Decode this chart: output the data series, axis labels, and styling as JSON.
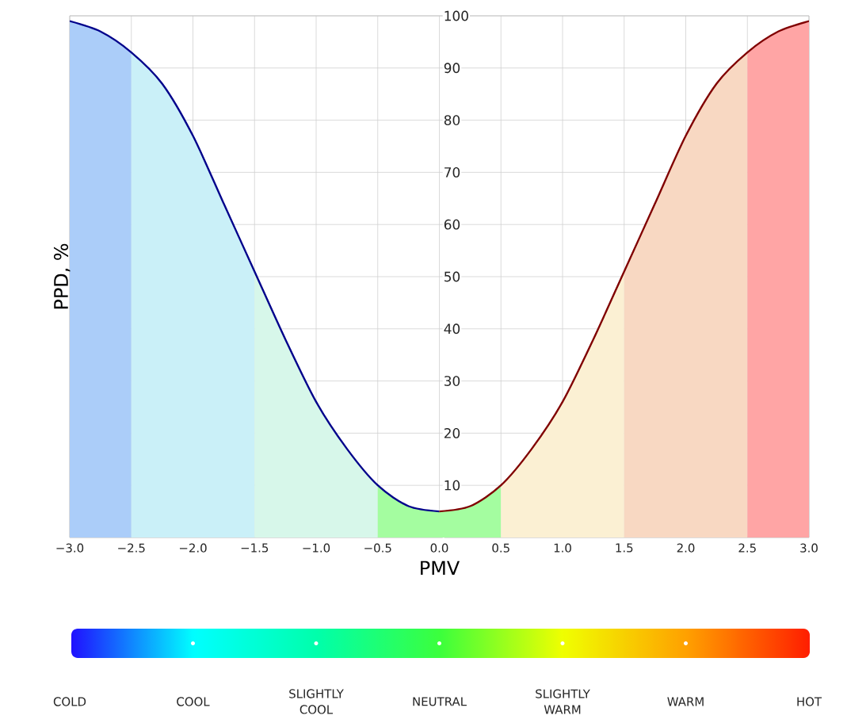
{
  "chart_data": {
    "type": "line",
    "xlabel": "PMV",
    "ylabel": "PPD, %",
    "xlim": [
      -3,
      3
    ],
    "xticks": [
      {
        "value": -3,
        "label": "−3.0"
      },
      {
        "value": -2.5,
        "label": "−2.5"
      },
      {
        "value": -2,
        "label": "−2.0"
      },
      {
        "value": -1.5,
        "label": "−1.5"
      },
      {
        "value": -1,
        "label": "−1.0"
      },
      {
        "value": -0.5,
        "label": "−0.5"
      },
      {
        "value": 0,
        "label": "0.0"
      },
      {
        "value": 0.5,
        "label": "0.5"
      },
      {
        "value": 1,
        "label": "1.0"
      },
      {
        "value": 1.5,
        "label": "1.5"
      },
      {
        "value": 2,
        "label": "2.0"
      },
      {
        "value": 2.5,
        "label": "2.5"
      },
      {
        "value": 3,
        "label": "3.0"
      }
    ],
    "ylim": [
      0,
      100
    ],
    "yticks": [
      {
        "value": 0,
        "label": null
      },
      10,
      20,
      30,
      40,
      50,
      60,
      70,
      80,
      90,
      100
    ],
    "grid": true,
    "series": [
      {
        "type": "area",
        "color": "#abcdf9",
        "x": [
          -3,
          -2.75,
          -2.5
        ],
        "values": [
          99,
          97,
          93
        ]
      },
      {
        "type": "area",
        "color": "#caf0f8",
        "x": [
          -2.5,
          -2.25,
          -2,
          -1.75,
          -1.5
        ],
        "values": [
          93,
          87,
          77,
          64,
          51
        ]
      },
      {
        "type": "area",
        "color": "#d7f7ea",
        "x": [
          -1.5,
          -1.25,
          -1,
          -0.75,
          -0.5
        ],
        "values": [
          51,
          38,
          26,
          17,
          10
        ]
      },
      {
        "type": "area",
        "color": "#a4fda0",
        "x": [
          -0.5,
          -0.25,
          0,
          0.25,
          0.5
        ],
        "values": [
          10,
          6,
          5,
          6,
          10
        ]
      },
      {
        "type": "area",
        "color": "#fbf0d3",
        "x": [
          0.5,
          0.75,
          1,
          1.25,
          1.5
        ],
        "values": [
          10,
          17,
          26,
          38,
          51
        ]
      },
      {
        "type": "area",
        "color": "#f8d8c2",
        "x": [
          1.5,
          1.75,
          2,
          2.25,
          2.5
        ],
        "values": [
          51,
          64,
          77,
          87,
          93
        ]
      },
      {
        "type": "area",
        "color": "#ffa5a5",
        "x": [
          2.5,
          2.75,
          3
        ],
        "values": [
          93,
          97,
          99
        ]
      },
      {
        "color": "#00008b",
        "x": [
          -3,
          -2.75,
          -2.5,
          -2.25,
          -2,
          -1.75,
          -1.5,
          -1.25,
          -1,
          -0.75,
          -0.5,
          -0.25,
          0
        ],
        "values": [
          99,
          97,
          93,
          87,
          77,
          64,
          51,
          38,
          26,
          17,
          10,
          6,
          5
        ]
      },
      {
        "color": "#800000",
        "x": [
          0,
          0.25,
          0.5,
          0.75,
          1,
          1.25,
          1.5,
          1.75,
          2,
          2.25,
          2.5,
          2.75,
          3
        ],
        "values": [
          5,
          6,
          10,
          17,
          26,
          38,
          51,
          64,
          77,
          87,
          93,
          97,
          99
        ]
      }
    ],
    "annotations": [
      "COLD",
      "COOL",
      "SLIGHTLY COOL",
      "NEUTRAL",
      "SLIGHTLY WARM",
      "WARM",
      "HOT"
    ]
  }
}
